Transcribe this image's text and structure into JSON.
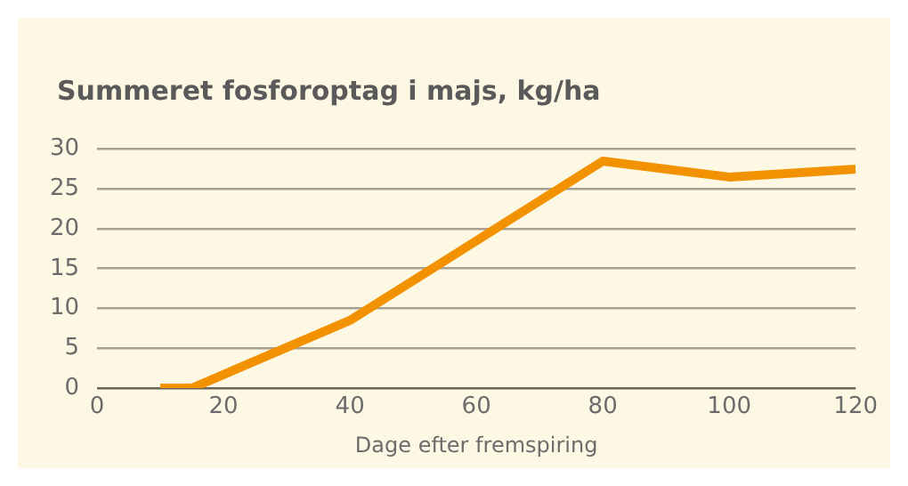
{
  "chart_data": {
    "type": "line",
    "title": "Summeret fosforoptag i majs, kg/ha",
    "xlabel": "Dage efter fremspiring",
    "x": [
      10,
      15,
      40,
      80,
      100,
      120
    ],
    "series": [
      {
        "color": "#f39200",
        "values": [
          0,
          0,
          8.5,
          28.5,
          26.5,
          27.5
        ]
      }
    ],
    "xlim": [
      0,
      120
    ],
    "xticks": [
      0,
      20,
      40,
      60,
      80,
      100,
      120
    ],
    "ylim": [
      0,
      30
    ],
    "yticks": [
      0,
      5,
      10,
      15,
      20,
      25,
      30
    ],
    "grid": "y",
    "legend": false,
    "marker": "none",
    "line_style": "solid"
  }
}
